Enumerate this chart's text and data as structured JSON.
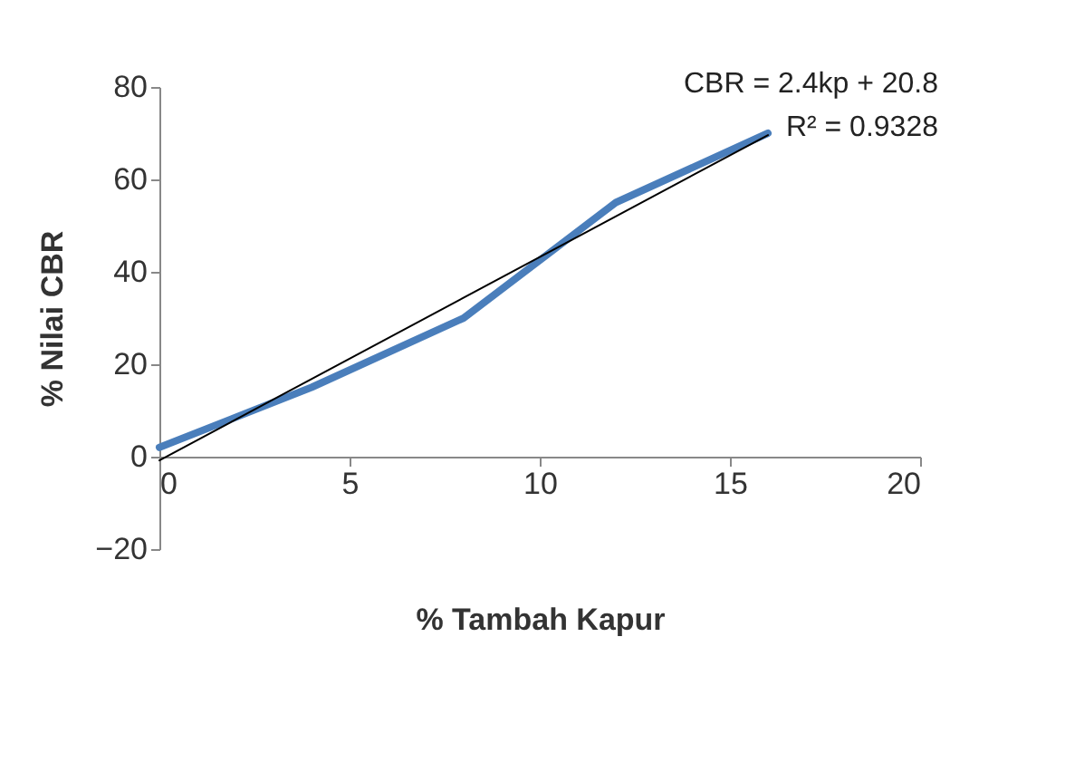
{
  "chart_data": {
    "type": "line",
    "xlabel": "% Tambah Kapur",
    "ylabel": "% Nilai CBR",
    "x": [
      0,
      4,
      8,
      12,
      16
    ],
    "series": [
      {
        "color": "#4a7ebb",
        "values": [
          2,
          15,
          30,
          55,
          70
        ]
      },
      {
        "type": "line",
        "color": "#000000",
        "x": [
          0,
          16
        ],
        "values": [
          -0.8,
          69.6
        ]
      }
    ],
    "xlim": [
      0,
      20
    ],
    "xticks": [
      0,
      5,
      10,
      15,
      20
    ],
    "ylim": [
      -20,
      80
    ],
    "yticks": [
      -20,
      0,
      20,
      40,
      60,
      80
    ],
    "grid": false,
    "marker": "none",
    "annotations": [
      "CBR = 2.4kp + 20.8",
      "R² = 0.9328"
    ]
  }
}
